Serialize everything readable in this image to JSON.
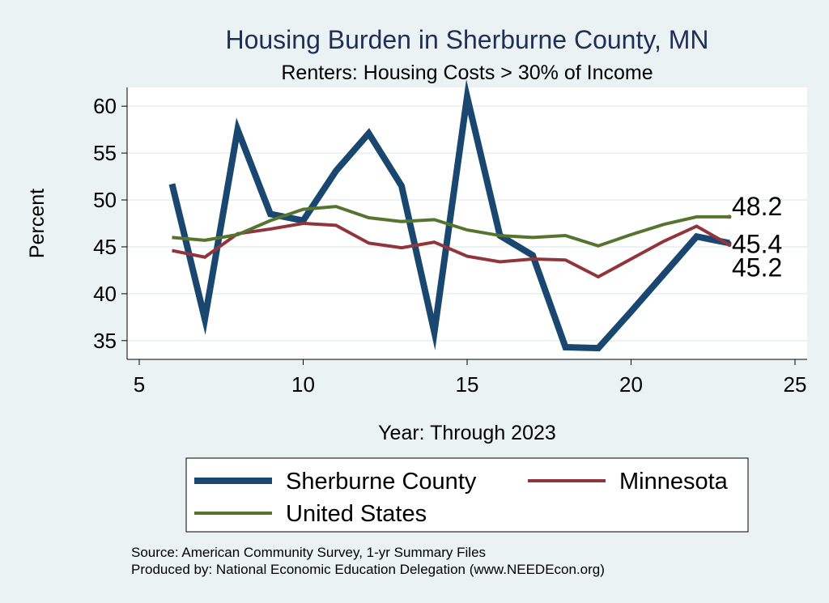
{
  "chart_data": {
    "type": "line",
    "title": "Housing Burden in Sherburne County, MN",
    "subtitle": "Renters: Housing Costs > 30% of Income",
    "xlabel": "Year: Through 2023",
    "ylabel": "Percent",
    "xlim": [
      5,
      25
    ],
    "ylim": [
      33,
      62
    ],
    "xticks": [
      5,
      10,
      15,
      20,
      25
    ],
    "yticks": [
      35,
      40,
      45,
      50,
      55,
      60
    ],
    "grid": true,
    "legend_position": "bottom",
    "x": [
      6,
      7,
      8,
      9,
      10,
      11,
      12,
      13,
      14,
      15,
      16,
      17,
      18,
      19,
      20,
      21,
      22,
      23
    ],
    "series": [
      {
        "name": "Sherburne County",
        "color": "#1a476f",
        "values": [
          51.7,
          37.3,
          57.5,
          48.5,
          47.8,
          53.1,
          57.1,
          51.5,
          35.9,
          61.0,
          46.2,
          44.1,
          34.3,
          34.2,
          38.1,
          42.1,
          46.1,
          45.4
        ],
        "end_label": "45.4"
      },
      {
        "name": "Minnesota",
        "color": "#90353b",
        "values": [
          44.6,
          43.9,
          46.4,
          46.9,
          47.5,
          47.3,
          45.4,
          44.9,
          45.5,
          44.0,
          43.4,
          43.7,
          43.6,
          41.8,
          43.7,
          45.6,
          47.2,
          45.2
        ],
        "end_label": "45.2"
      },
      {
        "name": "United States",
        "color": "#55752f",
        "values": [
          46.0,
          45.7,
          46.3,
          47.8,
          49.0,
          49.3,
          48.1,
          47.7,
          47.9,
          46.8,
          46.2,
          46.0,
          46.2,
          45.1,
          46.3,
          47.4,
          48.2,
          48.2
        ],
        "end_label": "48.2"
      }
    ],
    "notes": [
      "Source: American Community Survey, 1-yr Summary Files",
      "Produced by: National Economic Education Delegation (www.NEEDEcon.org)"
    ]
  }
}
